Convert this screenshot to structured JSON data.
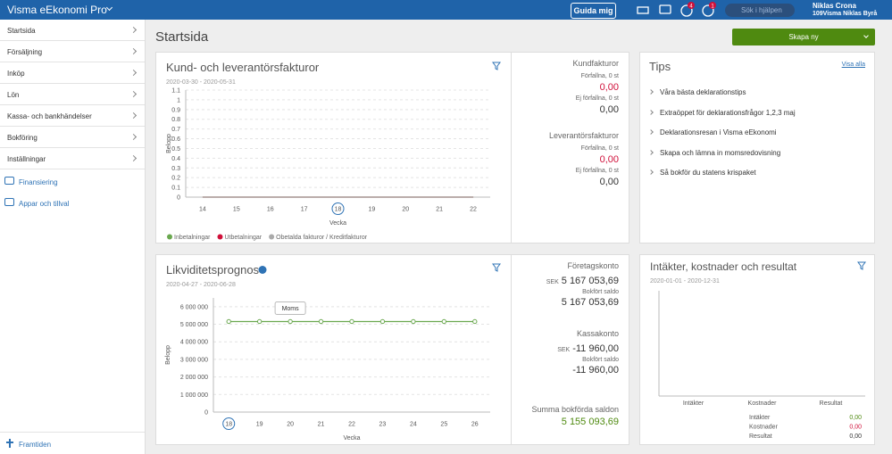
{
  "header": {
    "app_name": "Visma eEkonomi Pro",
    "guide_button": "Guida mig",
    "notification_badges": [
      "4",
      "1"
    ],
    "search_placeholder": "Sök i hjälpen",
    "user_name": "Niklas Crona",
    "company": "109Visma Niklas Byrå"
  },
  "sidebar": {
    "items": [
      "Startsida",
      "Försäljning",
      "Inköp",
      "Lön",
      "Kassa- och bankhändelser",
      "Bokföring",
      "Inställningar"
    ],
    "links": [
      "Finansiering",
      "Appar och tillval"
    ],
    "footer": "Framtiden"
  },
  "page": {
    "title": "Startsida",
    "create_button": "Skapa ny"
  },
  "invoices": {
    "chart_data": {
      "type": "line",
      "title": "Kund- och leverantörsfakturor",
      "subtitle": "2020-03-30 - 2020-05-31",
      "y_label": "Belopp",
      "x_label": "Vecka",
      "categories": [
        "14",
        "15",
        "16",
        "17",
        "18",
        "19",
        "20",
        "21",
        "22"
      ],
      "highlight_index": 4,
      "ylim": [
        0,
        1.1
      ],
      "yticks": [
        0,
        0.1,
        0.2,
        0.3,
        0.4,
        0.5,
        0.6,
        0.7,
        0.8,
        0.9,
        1,
        1.1
      ],
      "grid": true,
      "markers": false,
      "series": [
        {
          "name": "Inbetalningar",
          "color": "#6aa84f",
          "values": [
            0,
            0,
            0,
            0,
            0,
            0,
            0,
            0,
            0
          ]
        },
        {
          "name": "Utbetalningar",
          "color": "#d0103a",
          "values": [
            0,
            0,
            0,
            0,
            0,
            0,
            0,
            0,
            0
          ]
        },
        {
          "name": "Obetalda fakturor / Kreditfakturor",
          "color": "#aaaaaa",
          "values": [
            0,
            0,
            0,
            0,
            0,
            0,
            0,
            0,
            0
          ]
        }
      ]
    },
    "customer": {
      "title": "Kundfakturor",
      "overdue_label": "Förfallna, 0 st",
      "overdue_amount": "0,00",
      "not_due_label": "Ej förfallna, 0 st",
      "not_due_amount": "0,00"
    },
    "supplier": {
      "title": "Leverantörsfakturor",
      "overdue_label": "Förfallna, 0 st",
      "overdue_amount": "0,00",
      "not_due_label": "Ej förfallna, 0 st",
      "not_due_amount": "0,00"
    }
  },
  "tips": {
    "title": "Tips",
    "show_all": "Visa alla",
    "items": [
      "Våra bästa deklarationstips",
      "Extraöppet för deklarationsfrågor 1,2,3 maj",
      "Deklarationsresan i Visma eEkonomi",
      "Skapa och lämna in momsredovisning",
      "Så bokför du statens krispaket"
    ]
  },
  "liquidity": {
    "chart_data": {
      "type": "line",
      "title": "Likviditetsprognos",
      "subtitle": "2020-04-27 - 2020-06-28",
      "y_label": "Belopp",
      "x_label": "Vecka",
      "categories": [
        "18",
        "19",
        "20",
        "21",
        "22",
        "23",
        "24",
        "25",
        "26"
      ],
      "highlight_index": 0,
      "ylim": [
        0,
        6500000
      ],
      "yticks": [
        0,
        {
          "value": 1000000,
          "label": "1 000 000"
        },
        {
          "value": 2000000,
          "label": "2 000 000"
        },
        {
          "value": 3000000,
          "label": "3 000 000"
        },
        {
          "value": 4000000,
          "label": "4 000 000"
        },
        {
          "value": 5000000,
          "label": "5 000 000"
        },
        {
          "value": 6000000,
          "label": "6 000 000"
        }
      ],
      "grid": true,
      "markers": true,
      "series": [
        {
          "color": "#6aa84f",
          "values": [
            5155093.69,
            5155093.69,
            5155093.69,
            5155093.69,
            5155093.69,
            5155093.69,
            5155093.69,
            5155093.69,
            5155093.69
          ]
        }
      ],
      "annotations": [
        {
          "index": 2,
          "text": "Moms"
        }
      ]
    },
    "accounts": [
      {
        "name": "Företagskonto",
        "currency": "SEK",
        "balance": "5 167 053,69",
        "booked_label": "Bokfört saldo",
        "booked": "5 167 053,69"
      },
      {
        "name": "Kassakonto",
        "currency": "SEK",
        "balance": "-11 960,00",
        "booked_label": "Bokfört saldo",
        "booked": "-11 960,00"
      }
    ],
    "total_label": "Summa bokförda saldon",
    "total": "5 155 093,69"
  },
  "results": {
    "chart_data": {
      "type": "bar",
      "title": "Intäkter, kostnader och resultat",
      "subtitle": "2020-01-01 - 2020-12-31",
      "categories": [
        "Intäkter",
        "Kostnader",
        "Resultat"
      ],
      "values": [
        0,
        0,
        0
      ],
      "ylim": [
        0,
        1
      ],
      "color": "#6aa84f"
    },
    "summary": [
      {
        "label": "Intäkter",
        "value": "0,00"
      },
      {
        "label": "Kostnader",
        "value": "0,00"
      },
      {
        "label": "Resultat",
        "value": "0,00"
      }
    ]
  }
}
